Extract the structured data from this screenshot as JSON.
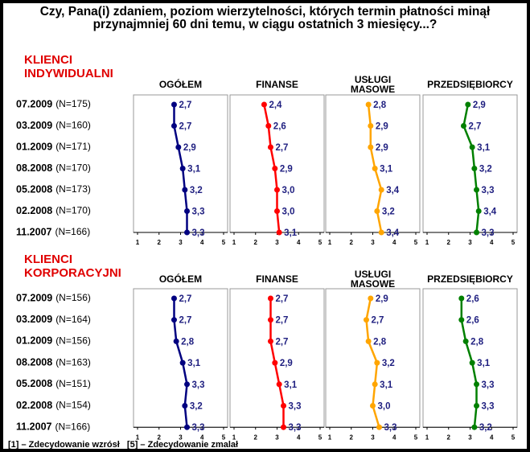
{
  "title": "Czy, Pana(i) zdaniem, poziom wierzytelności, których termin płatności minął przynajmniej 60 dni temu, w ciągu ostatnich 3 miesięcy...?",
  "footnote": "[1] – Zdecydowanie wzrósł   [5] – Zdecydowanie zmalał",
  "sections": [
    {
      "label": "KLIENCI INDYWIDUALNI",
      "sample_labels": [
        "(N=175)",
        "(N=160)",
        "(N=171)",
        "(N=170)",
        "(N=173)",
        "(N=170)",
        "(N=166)"
      ]
    },
    {
      "label": "KLIENCI KORPORACYJNI",
      "sample_labels": [
        "(N=156)",
        "(N=164)",
        "(N=156)",
        "(N=163)",
        "(N=151)",
        "(N=154)",
        "(N=166)"
      ]
    }
  ],
  "chart_data": [
    {
      "type": "line",
      "title": "OGÓŁEM",
      "color": "#000080",
      "label_color": "#1f1f80",
      "xlim": [
        1,
        5
      ],
      "xticks": [
        1,
        2,
        3,
        4,
        5
      ],
      "categories": [
        "07.2009",
        "03.2009",
        "01.2009",
        "08.2008",
        "05.2008",
        "02.2008",
        "11.2007"
      ],
      "values": [
        2.7,
        2.7,
        2.9,
        3.1,
        3.2,
        3.3,
        3.3
      ],
      "value_labels": [
        "2,7",
        "2,7",
        "2,9",
        "3,1",
        "3,2",
        "3,3",
        "3,3"
      ]
    },
    {
      "type": "line",
      "title": "FINANSE",
      "color": "#ff0000",
      "label_color": "#1f1f80",
      "xlim": [
        1,
        5
      ],
      "xticks": [
        1,
        2,
        3,
        4,
        5
      ],
      "categories": [
        "07.2009",
        "03.2009",
        "01.2009",
        "08.2008",
        "05.2008",
        "02.2008",
        "11.2007"
      ],
      "values": [
        2.4,
        2.6,
        2.7,
        2.9,
        3.0,
        3.0,
        3.1
      ],
      "value_labels": [
        "2,4",
        "2,6",
        "2,7",
        "2,9",
        "3,0",
        "3,0",
        "3,1"
      ]
    },
    {
      "type": "line",
      "title": "USŁUGI MASOWE",
      "color": "#ffa500",
      "label_color": "#1f1f80",
      "xlim": [
        1,
        5
      ],
      "xticks": [
        1,
        2,
        3,
        4,
        5
      ],
      "categories": [
        "07.2009",
        "03.2009",
        "01.2009",
        "08.2008",
        "05.2008",
        "02.2008",
        "11.2007"
      ],
      "values": [
        2.8,
        2.9,
        2.9,
        3.1,
        3.4,
        3.2,
        3.4
      ],
      "value_labels": [
        "2,8",
        "2,9",
        "2,9",
        "3,1",
        "3,4",
        "3,2",
        "3,4"
      ]
    },
    {
      "type": "line",
      "title": "PRZEDSIĘBIORCY",
      "color": "#008000",
      "label_color": "#1f1f80",
      "xlim": [
        1,
        5
      ],
      "xticks": [
        1,
        2,
        3,
        4,
        5
      ],
      "categories": [
        "07.2009",
        "03.2009",
        "01.2009",
        "08.2008",
        "05.2008",
        "02.2008",
        "11.2007"
      ],
      "values": [
        2.9,
        2.7,
        3.1,
        3.2,
        3.3,
        3.4,
        3.3
      ],
      "value_labels": [
        "2,9",
        "2,7",
        "3,1",
        "3,2",
        "3,3",
        "3,4",
        "3,3"
      ]
    },
    {
      "type": "line",
      "title": "OGÓŁEM",
      "color": "#000080",
      "label_color": "#1f1f80",
      "xlim": [
        1,
        5
      ],
      "xticks": [
        1,
        2,
        3,
        4,
        5
      ],
      "categories": [
        "07.2009",
        "03.2009",
        "01.2009",
        "08.2008",
        "05.2008",
        "02.2008",
        "11.2007"
      ],
      "values": [
        2.7,
        2.7,
        2.8,
        3.1,
        3.3,
        3.2,
        3.3
      ],
      "value_labels": [
        "2,7",
        "2,7",
        "2,8",
        "3,1",
        "3,3",
        "3,2",
        "3,3"
      ]
    },
    {
      "type": "line",
      "title": "FINANSE",
      "color": "#ff0000",
      "label_color": "#1f1f80",
      "xlim": [
        1,
        5
      ],
      "xticks": [
        1,
        2,
        3,
        4,
        5
      ],
      "categories": [
        "07.2009",
        "03.2009",
        "01.2009",
        "08.2008",
        "05.2008",
        "02.2008",
        "11.2007"
      ],
      "values": [
        2.7,
        2.7,
        2.7,
        2.9,
        3.1,
        3.3,
        3.3
      ],
      "value_labels": [
        "2,7",
        "2,7",
        "2,7",
        "2,9",
        "3,1",
        "3,3",
        "3,3"
      ]
    },
    {
      "type": "line",
      "title": "USŁUGI MASOWE",
      "color": "#ffa500",
      "label_color": "#1f1f80",
      "xlim": [
        1,
        5
      ],
      "xticks": [
        1,
        2,
        3,
        4,
        5
      ],
      "categories": [
        "07.2009",
        "03.2009",
        "01.2009",
        "08.2008",
        "05.2008",
        "02.2008",
        "11.2007"
      ],
      "values": [
        2.9,
        2.7,
        2.8,
        3.2,
        3.1,
        3.0,
        3.3
      ],
      "value_labels": [
        "2,9",
        "2,7",
        "2,8",
        "3,2",
        "3,1",
        "3,0",
        "3,3"
      ]
    },
    {
      "type": "line",
      "title": "PRZEDSIĘBIORCY",
      "color": "#008000",
      "label_color": "#1f1f80",
      "xlim": [
        1,
        5
      ],
      "xticks": [
        1,
        2,
        3,
        4,
        5
      ],
      "categories": [
        "07.2009",
        "03.2009",
        "01.2009",
        "08.2008",
        "05.2008",
        "02.2008",
        "11.2007"
      ],
      "values": [
        2.6,
        2.6,
        2.8,
        3.1,
        3.3,
        3.3,
        3.2
      ],
      "value_labels": [
        "2,6",
        "2,6",
        "2,8",
        "3,1",
        "3,3",
        "3,3",
        "3,2"
      ]
    }
  ]
}
